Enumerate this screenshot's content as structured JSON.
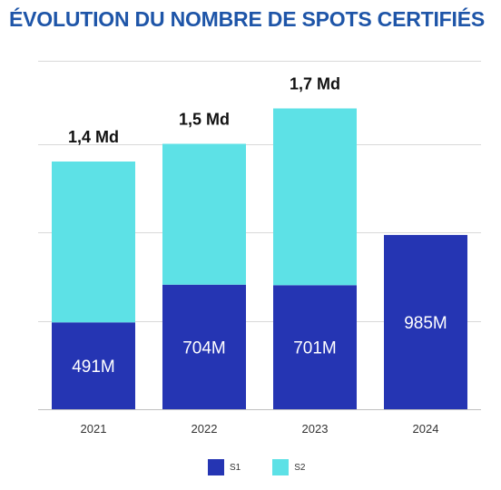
{
  "chart_data": {
    "type": "bar",
    "stacked": true,
    "title": "ÉVOLUTION DU NOMBRE DE SPOTS CERTIFIÉS",
    "categories": [
      "2021",
      "2022",
      "2023",
      "2024"
    ],
    "series": [
      {
        "name": "S1",
        "values": [
          491,
          704,
          701,
          985
        ],
        "color": "#2535b3",
        "labels": [
          "491M",
          "704M",
          "701M",
          "985M"
        ]
      },
      {
        "name": "S2",
        "values": [
          909,
          796,
          999,
          0
        ],
        "color": "#5de1e6"
      }
    ],
    "totals": [
      "1,4 Md",
      "1,5 Md",
      "1,7 Md",
      ""
    ],
    "ylim": [
      0,
      1750
    ],
    "grid": true,
    "legend": "bottom"
  }
}
